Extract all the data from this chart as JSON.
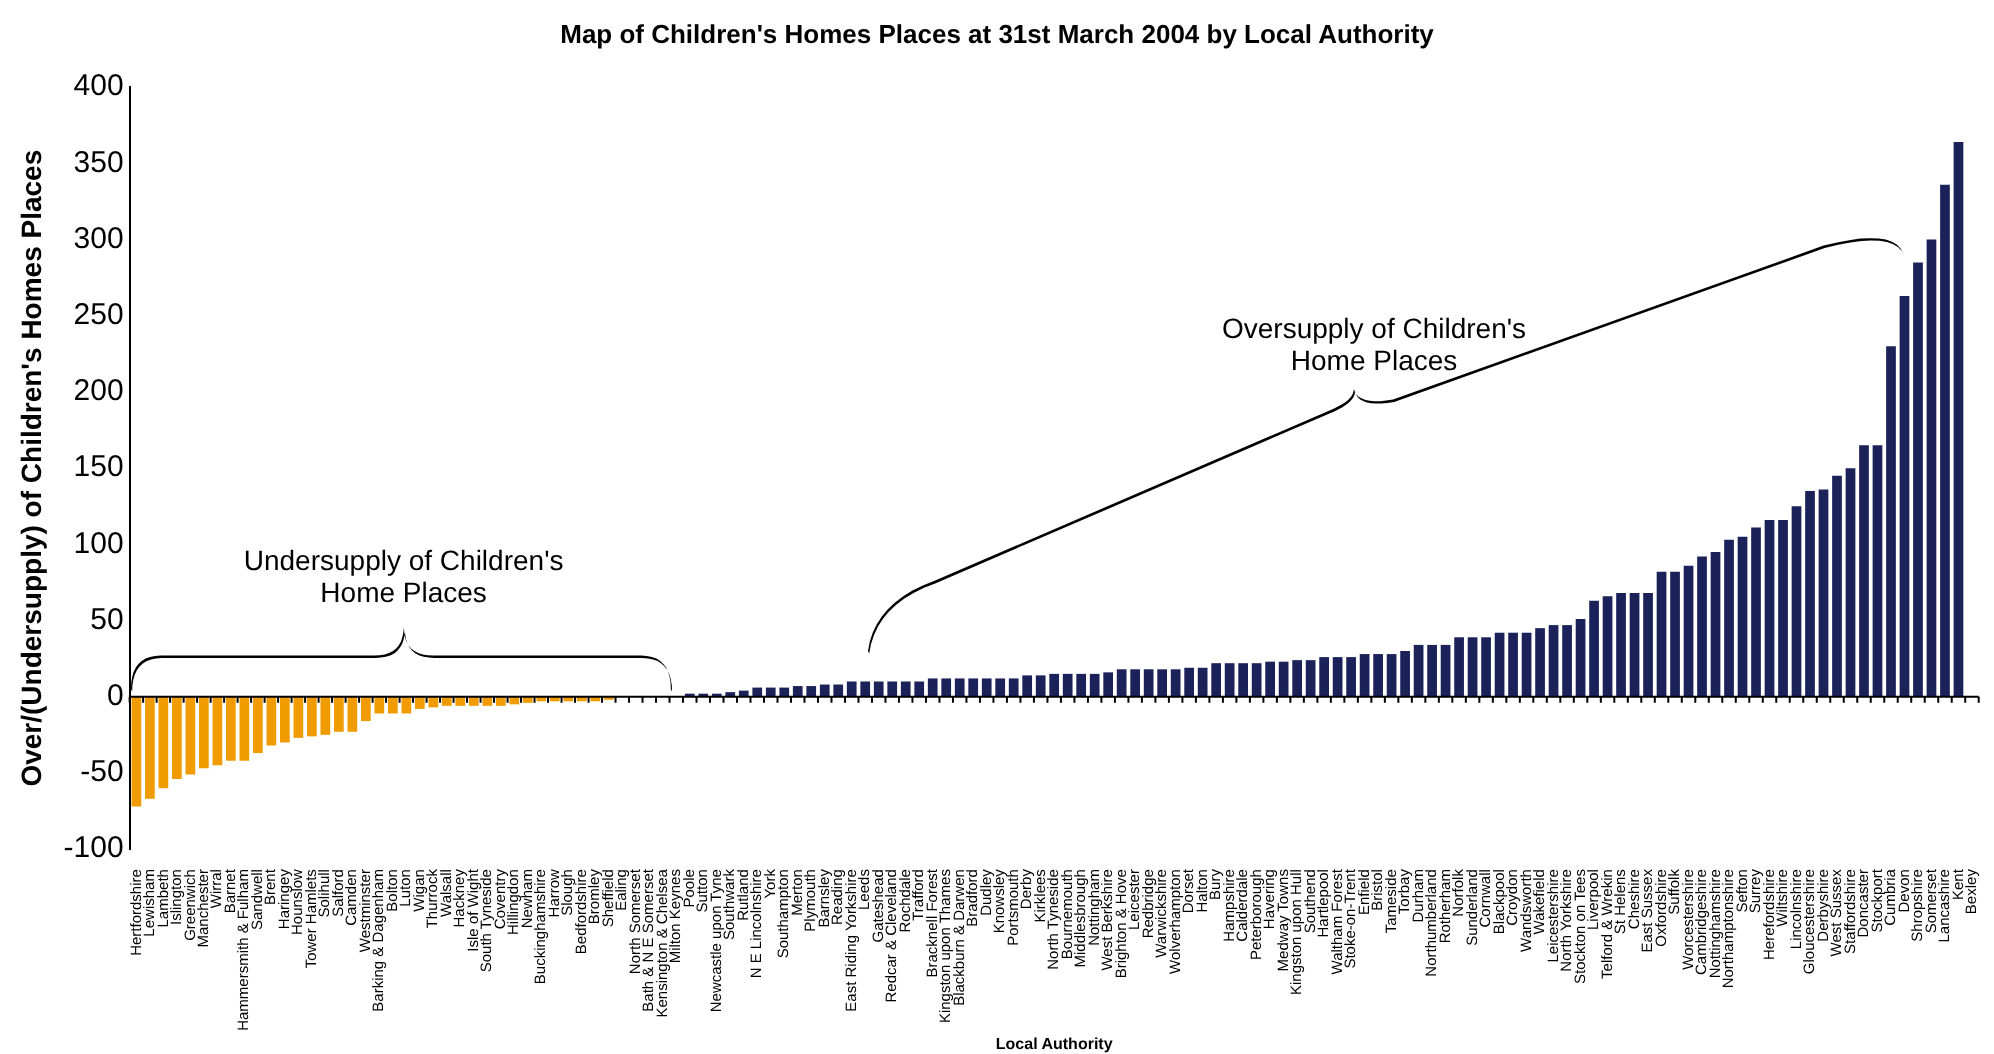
{
  "chart_data": {
    "type": "bar",
    "title": "Map of Children's Homes Places at 31st March 2004 by Local Authority",
    "xlabel": "Local Authority",
    "ylabel": "Over/(Undersupply) of Children's Homes Places",
    "categories": [
      "Hertfordshire",
      "Lewisham",
      "Lambeth",
      "Islington",
      "Greenwich",
      "Manchester",
      "Wirral",
      "Barnet",
      "Hammersmith & Fulham",
      "Sandwell",
      "Brent",
      "Haringey",
      "Hounslow",
      "Tower Hamlets",
      "Solihull",
      "Salford",
      "Camden",
      "Westminster",
      "Barking & Dagenham",
      "Bolton",
      "Luton",
      "Wigan",
      "Thurrock",
      "Walsall",
      "Hackney",
      "Isle of Wight",
      "South Tyneside",
      "Coventry",
      "Hillingdon",
      "Newham",
      "Buckinghamshire",
      "Harrow",
      "Slough",
      "Bedfordshire",
      "Bromley",
      "Sheffield",
      "Ealing",
      "North Somerset",
      "Bath & N E Somerset",
      "Kensington & Chelsea",
      "Milton Keynes",
      "Poole",
      "Sutton",
      "Newcastle upon Tyne",
      "Southwark",
      "Rutland",
      "N E Lincolnshire",
      "York",
      "Southampton",
      "Merton",
      "Plymouth",
      "Barnsley",
      "Reading",
      "East Riding Yorkshire",
      "Leeds",
      "Gateshead",
      "Redcar & Cleveland",
      "Rochdale",
      "Trafford",
      "Bracknell Forest",
      "Kingston upon Thames",
      "Blackburn & Darwen",
      "Bradford",
      "Dudley",
      "Knowsley",
      "Portsmouth",
      "Derby",
      "Kirklees",
      "North Tyneside",
      "Bournemouth",
      "Middlesbrough",
      "Nottingham",
      "West Berkshire",
      "Brighton & Hove",
      "Leicester",
      "Redbridge",
      "Warwickshire",
      "Wolverhampton",
      "Dorset",
      "Halton",
      "Bury",
      "Hampshire",
      "Calderdale",
      "Peterborough",
      "Havering",
      "Medway Towns",
      "Kingston upon Hull",
      "Southend",
      "Hartlepool",
      "Waltham Forest",
      "Stoke-on-Trent",
      "Enfield",
      "Bristol",
      "Tameside",
      "Torbay",
      "Durham",
      "Northumberland",
      "Rotherham",
      "Norfolk",
      "Sunderland",
      "Cornwall",
      "Blackpool",
      "Croydon",
      "Wandsworth",
      "Wakefield",
      "Leicestershire",
      "North Yorkshire",
      "Stockton on Tees",
      "Liverpool",
      "Telford & Wrekin",
      "St Helens",
      "Cheshire",
      "East Sussex",
      "Oxfordshire",
      "Suffolk",
      "Worcestershire",
      "Cambridgeshire",
      "Nottinghamshire",
      "Northamptonshire",
      "Sefton",
      "Surrey",
      "Herefordshire",
      "Wiltshire",
      "Lincolnshire",
      "Gloucestershire",
      "Derbyshire",
      "West Sussex",
      "Staffordshire",
      "Doncaster",
      "Stockport",
      "Cumbria",
      "Devon",
      "Shropshire",
      "Somerset",
      "Lancashire",
      "Kent",
      "Bexley"
    ],
    "values": [
      -72,
      -67,
      -60,
      -54,
      -51,
      -47,
      -45,
      -42,
      -42,
      -37,
      -32,
      -30,
      -27,
      -26,
      -25,
      -23,
      -23,
      -16,
      -11,
      -11,
      -11,
      -8,
      -7,
      -6,
      -6,
      -6,
      -6,
      -6,
      -5,
      -4,
      -3,
      -3,
      -3,
      -3,
      -3,
      -2,
      0,
      0,
      0,
      0,
      0,
      2,
      2,
      2,
      3,
      4,
      6,
      6,
      6,
      7,
      7,
      8,
      8,
      10,
      10,
      10,
      10,
      10,
      10,
      12,
      12,
      12,
      12,
      12,
      12,
      12,
      14,
      14,
      15,
      15,
      15,
      15,
      16,
      18,
      18,
      18,
      18,
      18,
      19,
      19,
      22,
      22,
      22,
      22,
      23,
      23,
      24,
      24,
      26,
      26,
      26,
      28,
      28,
      28,
      30,
      34,
      34,
      34,
      39,
      39,
      39,
      42,
      42,
      42,
      45,
      47,
      47,
      51,
      63,
      66,
      68,
      68,
      68,
      82,
      82,
      86,
      92,
      95,
      103,
      105,
      111,
      116,
      116,
      125,
      135,
      136,
      145,
      150,
      165,
      165,
      230,
      263,
      285,
      300,
      336,
      364,
      null
    ],
    "colors": [
      "#f09c00",
      "#f09c00",
      "#f09c00",
      "#f09c00",
      "#f09c00",
      "#f09c00",
      "#f09c00",
      "#f09c00",
      "#f09c00",
      "#f09c00",
      "#f09c00",
      "#f09c00",
      "#f09c00",
      "#f09c00",
      "#f09c00",
      "#f09c00",
      "#f09c00",
      "#f09c00",
      "#f09c00",
      "#f09c00",
      "#f09c00",
      "#f09c00",
      "#f09c00",
      "#f09c00",
      "#f09c00",
      "#f09c00",
      "#f09c00",
      "#f09c00",
      "#f09c00",
      "#f09c00",
      "#f09c00",
      "#f09c00",
      "#f09c00",
      "#f09c00",
      "#f09c00",
      "#f09c00",
      "#1b2159",
      "#1b2159",
      "#1b2159",
      "#1b2159",
      "#1b2159",
      "#1b2159",
      "#1b2159",
      "#1b2159",
      "#1b2159",
      "#1b2159",
      "#1b2159",
      "#1b2159",
      "#1b2159",
      "#1b2159",
      "#1b2159",
      "#1b2159",
      "#1b2159",
      "#1b2159",
      "#1b2159",
      "#1b2159",
      "#1b2159",
      "#1b2159",
      "#1b2159",
      "#1b2159",
      "#1b2159",
      "#1b2159",
      "#1b2159",
      "#1b2159",
      "#1b2159",
      "#1b2159",
      "#1b2159",
      "#1b2159",
      "#1b2159",
      "#1b2159",
      "#1b2159",
      "#1b2159",
      "#1b2159",
      "#1b2159",
      "#1b2159",
      "#1b2159",
      "#1b2159",
      "#1b2159",
      "#1b2159",
      "#1b2159",
      "#1b2159",
      "#1b2159",
      "#1b2159",
      "#1b2159",
      "#1b2159",
      "#1b2159",
      "#1b2159",
      "#1b2159",
      "#1b2159",
      "#1b2159",
      "#1b2159",
      "#1b2159",
      "#1b2159",
      "#1b2159",
      "#1b2159",
      "#1b2159",
      "#1b2159",
      "#1b2159",
      "#1b2159",
      "#1b2159",
      "#1b2159",
      "#1b2159",
      "#1b2159",
      "#1b2159",
      "#1b2159",
      "#1b2159",
      "#1b2159",
      "#1b2159",
      "#1b2159",
      "#1b2159",
      "#1b2159",
      "#1b2159",
      "#1b2159",
      "#1b2159",
      "#1b2159",
      "#1b2159",
      "#1b2159",
      "#1b2159",
      "#1b2159",
      "#1b2159",
      "#1b2159",
      "#1b2159",
      "#1b2159",
      "#1b2159",
      "#1b2159",
      "#1b2159",
      "#1b2159",
      "#1b2159",
      "#1b2159",
      "#1b2159",
      "#1b2159",
      "#1b2159",
      "#1b2159",
      "#1b2159",
      "#1b2159",
      "#1b2159",
      "#1b2159"
    ],
    "ref_lines": [
      {
        "axis": "y",
        "value": 0,
        "color": "#000000"
      }
    ],
    "ylim": [
      -100,
      400
    ],
    "yticks": [
      -100,
      -50,
      0,
      50,
      100,
      150,
      200,
      250,
      300,
      350,
      400
    ],
    "grid": false,
    "annotations": [
      "Undersupply of Children's\nHome Places",
      "Oversupply of Children's\nHome Places"
    ]
  }
}
